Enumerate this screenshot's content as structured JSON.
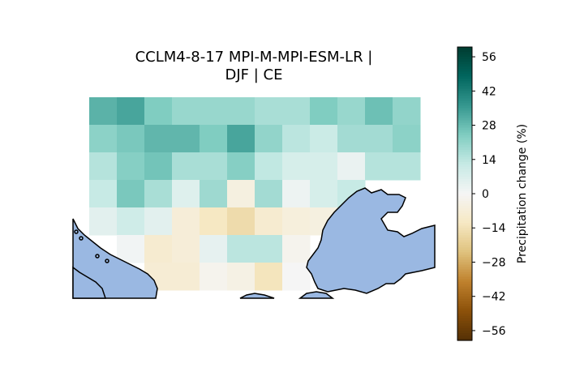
{
  "title": {
    "line1": "CCLM4-8-17 MPI-M-MPI-ESM-LR |",
    "line2": "DJF | CE"
  },
  "colors": {
    "sea": "#9ab8e2",
    "coastline": "#000000"
  },
  "chart_data": {
    "type": "heatmap",
    "description_units": "Precipitation change (%)",
    "grid_rows": 7,
    "grid_cols": 12,
    "values": [
      [
        30,
        33,
        24,
        20,
        20,
        20,
        17,
        17,
        24,
        20,
        27,
        21
      ],
      [
        22,
        25,
        29,
        29,
        24,
        33,
        21,
        14,
        11,
        18,
        18,
        22
      ],
      [
        15,
        23,
        26,
        17,
        17,
        23,
        13,
        8,
        8,
        3,
        15,
        15
      ],
      [
        12,
        25,
        17,
        6,
        19,
        -5,
        18,
        2,
        8,
        12,
        null,
        null
      ],
      [
        5,
        10,
        5,
        -7,
        -12,
        -16,
        -9,
        -6,
        -5,
        null,
        null,
        null
      ],
      [
        null,
        1,
        -9,
        -7,
        4,
        14,
        14,
        -2,
        null,
        null,
        null,
        null
      ],
      [
        null,
        null,
        -8,
        -8,
        -2,
        -4,
        -13,
        0,
        null,
        null,
        null,
        null
      ]
    ],
    "colorbar": {
      "label": "Precipitation change (%)",
      "min": -60,
      "max": 60,
      "ticks": [
        -56,
        -42,
        -28,
        -14,
        0,
        14,
        28,
        42,
        56
      ],
      "tick_labels": [
        "−56",
        "−42",
        "−28",
        "−14",
        "0",
        "14",
        "28",
        "42",
        "56"
      ],
      "colormap": "BrBG"
    }
  }
}
